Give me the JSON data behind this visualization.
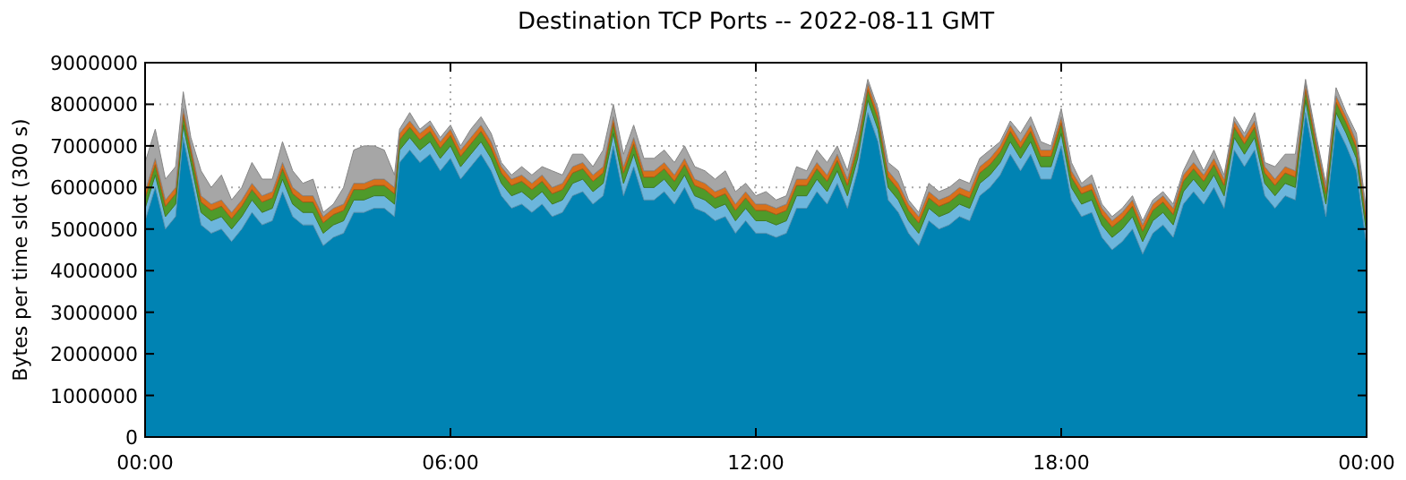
{
  "chart_data": {
    "type": "area",
    "stacked": true,
    "title": "Destination TCP Ports -- 2022-08-11 GMT",
    "ylabel": "Bytes per time slot (300 s)",
    "x": [
      0,
      0.2,
      0.4,
      0.6,
      0.75,
      0.9,
      1.1,
      1.3,
      1.5,
      1.7,
      1.9,
      2.1,
      2.3,
      2.5,
      2.7,
      2.9,
      3.1,
      3.3,
      3.5,
      3.7,
      3.9,
      4.1,
      4.3,
      4.5,
      4.7,
      4.9,
      5,
      5.2,
      5.4,
      5.6,
      5.8,
      6,
      6.2,
      6.4,
      6.6,
      6.8,
      7,
      7.2,
      7.4,
      7.6,
      7.8,
      8,
      8.2,
      8.4,
      8.6,
      8.8,
      9,
      9.2,
      9.4,
      9.6,
      9.8,
      10,
      10.2,
      10.4,
      10.6,
      10.8,
      11,
      11.2,
      11.4,
      11.6,
      11.8,
      12,
      12.2,
      12.4,
      12.6,
      12.8,
      13,
      13.2,
      13.4,
      13.6,
      13.8,
      14,
      14.2,
      14.4,
      14.6,
      14.8,
      15,
      15.2,
      15.4,
      15.6,
      15.8,
      16,
      16.2,
      16.4,
      16.6,
      16.8,
      17,
      17.2,
      17.4,
      17.6,
      17.8,
      18,
      18.2,
      18.4,
      18.6,
      18.8,
      19,
      19.2,
      19.4,
      19.6,
      19.8,
      20,
      20.2,
      20.4,
      20.6,
      20.8,
      21,
      21.2,
      21.4,
      21.6,
      21.8,
      22,
      22.2,
      22.4,
      22.6,
      22.8,
      23,
      23.2,
      23.4,
      23.6,
      23.8,
      24
    ],
    "series": [
      {
        "color": "#0083b3",
        "values": [
          5200000,
          6000000,
          5000000,
          5300000,
          7200000,
          6300000,
          5100000,
          4900000,
          5000000,
          4700000,
          5000000,
          5400000,
          5100000,
          5200000,
          5900000,
          5300000,
          5100000,
          5100000,
          4600000,
          4800000,
          4900000,
          5400000,
          5400000,
          5500000,
          5500000,
          5300000,
          6600000,
          6900000,
          6600000,
          6800000,
          6400000,
          6700000,
          6200000,
          6500000,
          6800000,
          6400000,
          5800000,
          5500000,
          5600000,
          5400000,
          5600000,
          5300000,
          5400000,
          5800000,
          5900000,
          5600000,
          5800000,
          7000000,
          5800000,
          6500000,
          5700000,
          5700000,
          5900000,
          5600000,
          6000000,
          5500000,
          5400000,
          5200000,
          5300000,
          4900000,
          5200000,
          4900000,
          4900000,
          4800000,
          4900000,
          5500000,
          5500000,
          5900000,
          5600000,
          6100000,
          5500000,
          6400000,
          7800000,
          7100000,
          5700000,
          5400000,
          4900000,
          4600000,
          5200000,
          5000000,
          5100000,
          5300000,
          5200000,
          5800000,
          6000000,
          6300000,
          6800000,
          6400000,
          6800000,
          6200000,
          6200000,
          7000000,
          5700000,
          5300000,
          5400000,
          4800000,
          4500000,
          4700000,
          5000000,
          4400000,
          4900000,
          5100000,
          4800000,
          5600000,
          5900000,
          5600000,
          6000000,
          5500000,
          6900000,
          6500000,
          6900000,
          5800000,
          5500000,
          5800000,
          5700000,
          7800000,
          6500000,
          5300000,
          7500000,
          7000000,
          6400000,
          4600000
        ]
      },
      {
        "color": "#6cb6dc",
        "values": [
          300000,
          300000,
          300000,
          300000,
          300000,
          300000,
          300000,
          300000,
          300000,
          300000,
          300000,
          300000,
          300000,
          300000,
          300000,
          300000,
          300000,
          300000,
          300000,
          300000,
          300000,
          300000,
          300000,
          300000,
          300000,
          300000,
          300000,
          300000,
          300000,
          300000,
          300000,
          300000,
          300000,
          300000,
          300000,
          300000,
          300000,
          300000,
          300000,
          300000,
          300000,
          300000,
          300000,
          300000,
          300000,
          300000,
          300000,
          300000,
          300000,
          300000,
          300000,
          300000,
          300000,
          300000,
          300000,
          300000,
          300000,
          300000,
          300000,
          300000,
          300000,
          300000,
          300000,
          300000,
          300000,
          300000,
          300000,
          300000,
          300000,
          300000,
          300000,
          300000,
          300000,
          300000,
          300000,
          300000,
          300000,
          300000,
          300000,
          300000,
          300000,
          300000,
          300000,
          300000,
          300000,
          300000,
          300000,
          300000,
          300000,
          300000,
          300000,
          300000,
          300000,
          300000,
          300000,
          300000,
          300000,
          300000,
          300000,
          300000,
          300000,
          300000,
          300000,
          300000,
          300000,
          300000,
          300000,
          300000,
          300000,
          300000,
          300000,
          300000,
          300000,
          300000,
          300000,
          300000,
          300000,
          300000,
          300000,
          300000,
          300000,
          300000
        ]
      },
      {
        "color": "#4f9a2a",
        "values": [
          250000,
          250000,
          250000,
          250000,
          250000,
          250000,
          250000,
          250000,
          250000,
          250000,
          250000,
          250000,
          250000,
          250000,
          250000,
          250000,
          250000,
          250000,
          250000,
          250000,
          250000,
          250000,
          250000,
          250000,
          250000,
          250000,
          250000,
          250000,
          250000,
          250000,
          250000,
          250000,
          250000,
          250000,
          250000,
          250000,
          250000,
          250000,
          250000,
          250000,
          250000,
          250000,
          250000,
          250000,
          250000,
          250000,
          250000,
          250000,
          250000,
          250000,
          250000,
          250000,
          250000,
          250000,
          250000,
          250000,
          250000,
          250000,
          250000,
          250000,
          250000,
          250000,
          250000,
          250000,
          250000,
          250000,
          250000,
          250000,
          250000,
          250000,
          250000,
          250000,
          250000,
          250000,
          250000,
          250000,
          250000,
          250000,
          250000,
          250000,
          250000,
          250000,
          250000,
          250000,
          250000,
          250000,
          250000,
          250000,
          250000,
          250000,
          250000,
          250000,
          250000,
          250000,
          250000,
          250000,
          250000,
          250000,
          250000,
          250000,
          250000,
          250000,
          250000,
          250000,
          250000,
          250000,
          250000,
          250000,
          250000,
          250000,
          250000,
          250000,
          250000,
          250000,
          250000,
          250000,
          250000,
          250000,
          250000,
          250000,
          250000,
          250000
        ]
      },
      {
        "color": "#d9701a",
        "values": [
          150000,
          150000,
          150000,
          150000,
          150000,
          150000,
          150000,
          150000,
          150000,
          150000,
          150000,
          150000,
          150000,
          150000,
          150000,
          150000,
          150000,
          150000,
          150000,
          150000,
          150000,
          150000,
          150000,
          150000,
          150000,
          150000,
          150000,
          150000,
          150000,
          150000,
          150000,
          150000,
          150000,
          150000,
          150000,
          150000,
          150000,
          150000,
          150000,
          150000,
          150000,
          150000,
          150000,
          150000,
          150000,
          150000,
          150000,
          150000,
          150000,
          150000,
          150000,
          150000,
          150000,
          150000,
          150000,
          150000,
          150000,
          150000,
          150000,
          150000,
          150000,
          150000,
          150000,
          150000,
          150000,
          150000,
          150000,
          150000,
          150000,
          150000,
          150000,
          150000,
          150000,
          150000,
          150000,
          150000,
          150000,
          150000,
          150000,
          150000,
          150000,
          150000,
          150000,
          150000,
          150000,
          150000,
          150000,
          150000,
          150000,
          150000,
          150000,
          150000,
          150000,
          150000,
          150000,
          150000,
          150000,
          150000,
          150000,
          150000,
          150000,
          150000,
          150000,
          150000,
          150000,
          150000,
          150000,
          150000,
          150000,
          150000,
          150000,
          150000,
          150000,
          150000,
          150000,
          150000,
          150000,
          150000,
          150000,
          150000,
          150000,
          150000
        ]
      },
      {
        "color": "#a6a6a6",
        "values": [
          700000,
          700000,
          500000,
          500000,
          400000,
          200000,
          600000,
          400000,
          600000,
          300000,
          300000,
          500000,
          400000,
          300000,
          500000,
          400000,
          300000,
          400000,
          100000,
          100000,
          400000,
          800000,
          900000,
          800000,
          700000,
          300000,
          100000,
          200000,
          100000,
          100000,
          100000,
          100000,
          100000,
          200000,
          200000,
          200000,
          100000,
          100000,
          200000,
          200000,
          200000,
          400000,
          200000,
          300000,
          200000,
          200000,
          400000,
          300000,
          300000,
          300000,
          300000,
          300000,
          300000,
          300000,
          300000,
          300000,
          300000,
          300000,
          400000,
          300000,
          200000,
          200000,
          300000,
          200000,
          200000,
          300000,
          200000,
          300000,
          300000,
          200000,
          200000,
          300000,
          100000,
          100000,
          200000,
          300000,
          100000,
          100000,
          200000,
          200000,
          200000,
          200000,
          200000,
          200000,
          200000,
          100000,
          100000,
          200000,
          200000,
          200000,
          100000,
          200000,
          200000,
          100000,
          200000,
          100000,
          100000,
          100000,
          100000,
          100000,
          100000,
          100000,
          100000,
          100000,
          300000,
          100000,
          200000,
          100000,
          100000,
          100000,
          200000,
          100000,
          300000,
          300000,
          400000,
          100000,
          100000,
          100000,
          200000,
          100000,
          200000,
          100000
        ]
      }
    ],
    "xlim": [
      0,
      24
    ],
    "xticks": [
      {
        "value": 0,
        "label": "00:00"
      },
      {
        "value": 6,
        "label": "06:00"
      },
      {
        "value": 12,
        "label": "12:00"
      },
      {
        "value": 18,
        "label": "18:00"
      },
      {
        "value": 24,
        "label": "00:00"
      }
    ],
    "ylim": [
      0,
      9000000
    ],
    "yticks": [
      0,
      1000000,
      2000000,
      3000000,
      4000000,
      5000000,
      6000000,
      7000000,
      8000000,
      9000000
    ],
    "grid": true
  }
}
